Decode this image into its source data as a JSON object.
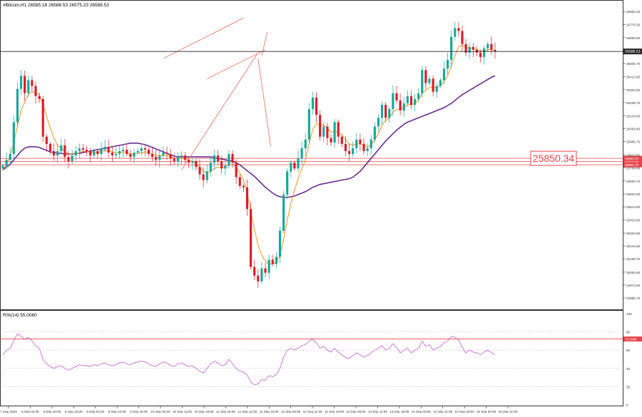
{
  "header": {
    "symbol_line": "#Bitcoin,H1  26585.18 26588.53 26575.23 26588.53"
  },
  "rsi_header": "RSI(14) 55.0060",
  "price_label_big": "25850.34",
  "colors": {
    "bull": "#17a89a",
    "bear": "#d81e2a",
    "ma_fast": "#f7931e",
    "ma_slow": "#6a2c91",
    "rsi": "#c86dd7",
    "trend": "#f07a6a",
    "level": "#e8434b"
  },
  "chart_data": [
    {
      "type": "candlestick",
      "title": "#Bitcoin,H1",
      "ylim": [
        24866,
        26875
      ],
      "y_ticks": [
        "26864.20",
        "26775.00",
        "26683.90",
        "26594.80",
        "26505.70",
        "26413.90",
        "26324.60",
        "26235.70",
        "26143.80",
        "26054.80",
        "25965.70",
        "25873.60",
        "25784.80",
        "25693.70",
        "25603.90",
        "25514.80",
        "25423.90",
        "25333.90",
        "25244.80",
        "25155.70",
        "25063.90",
        "24974.80",
        "24885.70"
      ],
      "x_ticks": [
        "7 Sep 2023",
        "8 Sep 02:00",
        "8 Sep 10:00",
        "8 Sep 18:00",
        "9 Sep 02:00",
        "9 Sep 10:00",
        "9 Sep 18:00",
        "10 Sep 02:00",
        "10 Sep 11:00",
        "10 Sep 19:00",
        "11 Sep 03:00",
        "11 Sep 11:00",
        "11 Sep 19:00",
        "12 Sep 03:00",
        "12 Sep 11:00",
        "12 Sep 19:00",
        "13 Sep 03:00",
        "13 Sep 11:00",
        "13 Sep 19:00",
        "14 Sep 03:00",
        "14 Sep 11:00",
        "14 Sep 19:00",
        "15 Sep 03:00",
        "15 Sep 11:00"
      ],
      "current_price": "26588.53",
      "levels": [
        {
          "value": 25829.4,
          "label": "25829.44"
        },
        {
          "value": 25850.34,
          "label": "25850.34"
        },
        {
          "value": 25805.7,
          "label": "25805.70"
        }
      ],
      "close": [
        25800,
        25840,
        25880,
        26100,
        26330,
        26420,
        26300,
        26390,
        26350,
        26280,
        26260,
        26000,
        25950,
        25900,
        25870,
        25900,
        25940,
        25860,
        25830,
        25870,
        25900,
        25920,
        25910,
        25900,
        25870,
        25900,
        25880,
        25910,
        25930,
        25890,
        25870,
        25880,
        25900,
        25910,
        25880,
        25860,
        25890,
        25900,
        25920,
        25910,
        25880,
        25860,
        25840,
        25870,
        25890,
        25880,
        25850,
        25830,
        25860,
        25870,
        25840,
        25820,
        25830,
        25790,
        25740,
        25700,
        25760,
        25820,
        25870,
        25830,
        25780,
        25800,
        25880,
        25820,
        25720,
        25660,
        25650,
        25500,
        25100,
        25040,
        25000,
        25090,
        25060,
        25150,
        25120,
        25170,
        25350,
        25600,
        25760,
        25820,
        25780,
        25850,
        25920,
        25980,
        26190,
        26270,
        26150,
        26000,
        26070,
        25990,
        25960,
        26100,
        26000,
        25950,
        25900,
        25880,
        25920,
        25980,
        25950,
        25900,
        25920,
        25980,
        26070,
        26130,
        26220,
        26130,
        26190,
        26300,
        26250,
        26180,
        26230,
        26280,
        26220,
        26260,
        26300,
        26460,
        26370,
        26400,
        26310,
        26350,
        26390,
        26470,
        26530,
        26690,
        26750,
        26730,
        26640,
        26580,
        26620,
        26600,
        26580,
        26550,
        26610,
        26640,
        26600,
        26588.53
      ],
      "ma_fast": [
        25770,
        25810,
        25860,
        25960,
        26070,
        26180,
        26240,
        26290,
        26310,
        26300,
        26290,
        26220,
        26140,
        26060,
        25990,
        25940,
        25920,
        25900,
        25880,
        25880,
        25880,
        25890,
        25900,
        25900,
        25890,
        25890,
        25890,
        25900,
        25905,
        25900,
        25895,
        25890,
        25890,
        25895,
        25890,
        25880,
        25880,
        25885,
        25890,
        25895,
        25890,
        25880,
        25870,
        25865,
        25870,
        25870,
        25860,
        25850,
        25850,
        25850,
        25845,
        25835,
        25830,
        25815,
        25790,
        25760,
        25750,
        25760,
        25780,
        25790,
        25785,
        25790,
        25805,
        25810,
        25790,
        25750,
        25700,
        25620,
        25480,
        25360,
        25250,
        25180,
        25140,
        25120,
        25120,
        25130,
        25180,
        25290,
        25420,
        25540,
        25630,
        25710,
        25780,
        25840,
        25950,
        26050,
        26090,
        26080,
        26080,
        26060,
        26030,
        26040,
        26030,
        26010,
        25980,
        25950,
        25940,
        25950,
        25950,
        25940,
        25930,
        25940,
        25980,
        26020,
        26080,
        26110,
        26130,
        26170,
        26190,
        26190,
        26200,
        26220,
        26220,
        26230,
        26250,
        26300,
        26320,
        26340,
        26340,
        26340,
        26350,
        26380,
        26420,
        26490,
        26560,
        26620,
        26630,
        26620,
        26610,
        26610,
        26600,
        26590,
        26590,
        26600,
        26600,
        26595
      ],
      "ma_slow": [
        25770,
        25790,
        25810,
        25840,
        25870,
        25900,
        25920,
        25930,
        25930,
        25930,
        25925,
        25915,
        25905,
        25895,
        25890,
        25885,
        25885,
        25880,
        25880,
        25880,
        25882,
        25885,
        25890,
        25895,
        25900,
        25905,
        25910,
        25915,
        25920,
        25925,
        25930,
        25935,
        25940,
        25945,
        25950,
        25955,
        25955,
        25955,
        25950,
        25945,
        25935,
        25925,
        25915,
        25905,
        25895,
        25885,
        25875,
        25865,
        25860,
        25860,
        25860,
        25860,
        25860,
        25860,
        25860,
        25860,
        25860,
        25860,
        25855,
        25850,
        25845,
        25840,
        25835,
        25830,
        25820,
        25805,
        25785,
        25765,
        25745,
        25725,
        25700,
        25675,
        25650,
        25630,
        25610,
        25595,
        25585,
        25580,
        25580,
        25585,
        25590,
        25600,
        25610,
        25620,
        25635,
        25650,
        25660,
        25670,
        25675,
        25680,
        25685,
        25690,
        25695,
        25700,
        25705,
        25710,
        25720,
        25740,
        25760,
        25790,
        25820,
        25850,
        25880,
        25910,
        25940,
        25970,
        25995,
        26020,
        26045,
        26065,
        26085,
        26100,
        26110,
        26120,
        26130,
        26140,
        26150,
        26160,
        26170,
        26180,
        26190,
        26200,
        26215,
        26230,
        26250,
        26270,
        26290,
        26305,
        26320,
        26335,
        26350,
        26365,
        26380,
        26395,
        26410,
        26420
      ],
      "trend_lines": [
        {
          "from": [
            44,
            26540
          ],
          "to": [
            66,
            26820
          ]
        },
        {
          "from": [
            49,
            25770
          ],
          "to": [
            70,
            26580
          ]
        },
        {
          "from": [
            56,
            26400
          ],
          "to": [
            72,
            26600
          ]
        },
        {
          "from": [
            71,
            26560
          ],
          "to": [
            72.5,
            26720
          ]
        },
        {
          "from": [
            70,
            26540
          ],
          "to": [
            73.5,
            25930
          ]
        }
      ]
    },
    {
      "type": "line",
      "title": "RSI(14) 55.0060",
      "ylim": [
        0,
        100
      ],
      "y_ticks": [
        "100",
        "80",
        "60",
        "40",
        "20",
        "0"
      ],
      "levels": [
        {
          "value": 72.2089,
          "label": "72.2089"
        }
      ],
      "values": [
        55,
        60,
        62,
        70,
        78,
        75,
        72,
        74,
        70,
        65,
        62,
        50,
        45,
        42,
        40,
        42,
        43,
        40,
        38,
        40,
        42,
        44,
        43,
        43,
        42,
        44,
        43,
        45,
        46,
        44,
        43,
        44,
        46,
        47,
        45,
        44,
        46,
        47,
        48,
        47,
        45,
        43,
        42,
        45,
        47,
        46,
        43,
        42,
        45,
        46,
        44,
        42,
        43,
        40,
        37,
        35,
        40,
        45,
        48,
        46,
        43,
        44,
        50,
        45,
        40,
        37,
        36,
        33,
        25,
        22,
        23,
        28,
        27,
        32,
        31,
        33,
        40,
        52,
        60,
        62,
        60,
        62,
        65,
        66,
        70,
        72,
        68,
        62,
        64,
        60,
        58,
        62,
        58,
        55,
        52,
        51,
        54,
        57,
        55,
        52,
        54,
        57,
        60,
        62,
        65,
        60,
        62,
        67,
        63,
        57,
        60,
        62,
        57,
        60,
        62,
        70,
        64,
        66,
        60,
        62,
        64,
        68,
        70,
        75,
        74,
        71,
        63,
        57,
        60,
        58,
        57,
        55,
        58,
        60,
        57,
        55
      ]
    }
  ]
}
